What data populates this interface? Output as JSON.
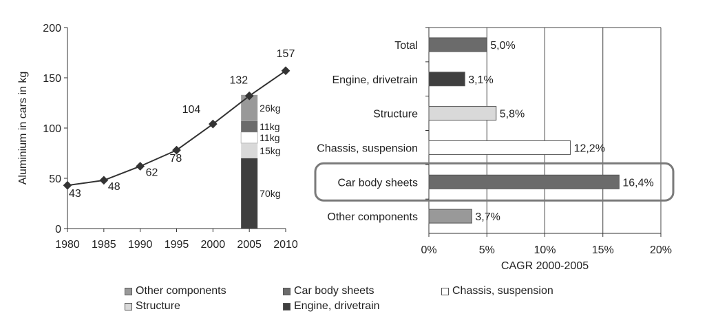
{
  "colors": {
    "other_components": "#999999",
    "car_body_sheets": "#6b6b6b",
    "chassis_suspension": "#ffffff",
    "structure": "#d9d9d9",
    "engine_drivetrain": "#3f3f3f",
    "total": "#6b6b6b",
    "line": "#333333",
    "highlight_box": "#7a7a7a"
  },
  "legend": [
    {
      "key": "other_components",
      "label": "Other components"
    },
    {
      "key": "car_body_sheets",
      "label": "Car body sheets"
    },
    {
      "key": "chassis_suspension",
      "label": "Chassis, suspension"
    },
    {
      "key": "structure",
      "label": "Structure"
    },
    {
      "key": "engine_drivetrain",
      "label": "Engine, drivetrain"
    }
  ],
  "chart_data": [
    {
      "type": "line",
      "title": "",
      "xlabel": "",
      "ylabel": "Aluminium in cars in kg",
      "x": [
        1980,
        1985,
        1990,
        1995,
        2000,
        2005,
        2010
      ],
      "values": [
        43,
        48,
        62,
        78,
        104,
        132,
        157
      ],
      "data_labels": [
        "43",
        "48",
        "62",
        "78",
        "104",
        "132",
        "157"
      ],
      "xticks": [
        "1980",
        "1985",
        "1990",
        "1995",
        "2000",
        "2005",
        "2010"
      ],
      "yticks": [
        "0",
        "50",
        "100",
        "150",
        "200"
      ],
      "ylim": [
        0,
        200
      ],
      "stacked_bar": {
        "x": 2005,
        "segments": [
          {
            "key": "engine_drivetrain",
            "value": 70,
            "label": "70kg"
          },
          {
            "key": "structure",
            "value": 15,
            "label": "15kg"
          },
          {
            "key": "chassis_suspension",
            "value": 11,
            "label": "11kg"
          },
          {
            "key": "car_body_sheets",
            "value": 11,
            "label": "11kg"
          },
          {
            "key": "other_components",
            "value": 26,
            "label": "26kg"
          }
        ]
      },
      "grid": false,
      "legend_position": "bottom"
    },
    {
      "type": "bar",
      "orientation": "horizontal",
      "title": "",
      "xlabel": "CAGR 2000-2005",
      "categories": [
        "Total",
        "Engine, drivetrain",
        "Structure",
        "Chassis, suspension",
        "Car body sheets",
        "Other components"
      ],
      "category_keys": [
        "total",
        "engine_drivetrain",
        "structure",
        "chassis_suspension",
        "car_body_sheets",
        "other_components"
      ],
      "values": [
        5.0,
        3.1,
        5.8,
        12.2,
        16.4,
        3.7
      ],
      "data_labels": [
        "5,0%",
        "3,1%",
        "5,8%",
        "12,2%",
        "16,4%",
        "3,7%"
      ],
      "xticks": [
        "0%",
        "5%",
        "10%",
        "15%",
        "20%"
      ],
      "xlim": [
        0,
        20
      ],
      "highlighted_category": "Car body sheets",
      "grid": true
    }
  ]
}
